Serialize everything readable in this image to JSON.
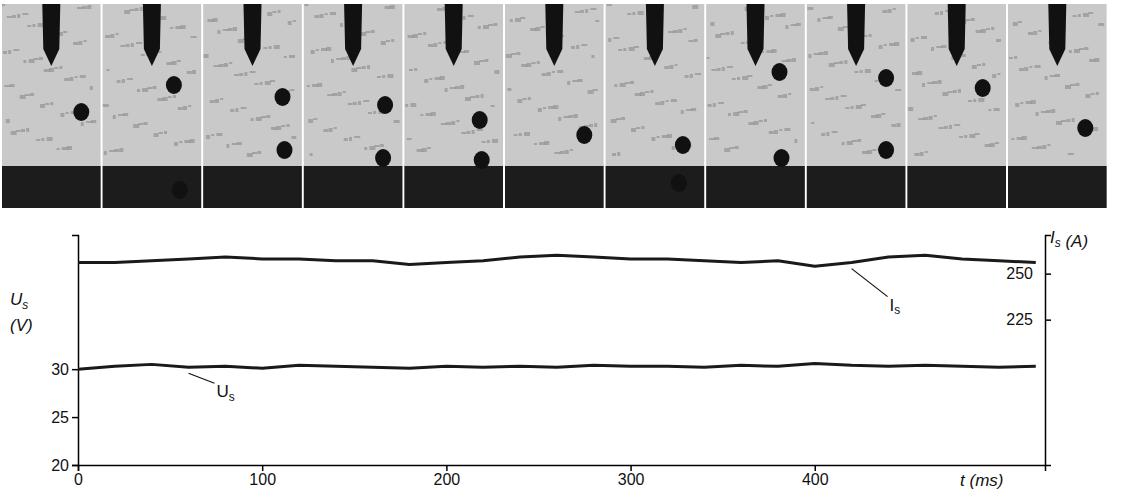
{
  "chart_data": {
    "type": "line",
    "x_label": "t (ms)",
    "y_label": "Us (V)",
    "y2_label": "Is (A)",
    "x": [
      0,
      20,
      40,
      60,
      80,
      100,
      120,
      140,
      160,
      180,
      200,
      220,
      240,
      260,
      280,
      300,
      320,
      340,
      360,
      380,
      400,
      420,
      440,
      460,
      480,
      500,
      520
    ],
    "series": [
      {
        "name": "Us",
        "color": "#1a1a1a",
        "values": [
          30.0,
          30.3,
          30.5,
          30.2,
          30.3,
          30.1,
          30.4,
          30.3,
          30.2,
          30.1,
          30.3,
          30.2,
          30.3,
          30.2,
          30.4,
          30.3,
          30.3,
          30.2,
          30.4,
          30.3,
          30.6,
          30.4,
          30.3,
          30.4,
          30.3,
          30.2,
          30.3
        ]
      },
      {
        "name": "Is",
        "color": "#1a1a1a",
        "axis": "y2",
        "values": [
          256,
          256,
          257,
          258,
          259,
          258,
          258,
          257,
          257,
          255,
          256,
          257,
          259,
          260,
          259,
          258,
          258,
          257,
          256,
          257,
          254,
          256,
          259,
          260,
          258,
          257,
          256
        ]
      }
    ],
    "xlim": [
      0,
      525
    ],
    "xticks": [
      0,
      100,
      200,
      300,
      400
    ],
    "ylim": [
      20,
      44
    ],
    "yticks": [
      20,
      25,
      30
    ],
    "y2lim": [
      146,
      271
    ],
    "y2ticks": [
      225,
      250
    ],
    "grid": false
  }
}
